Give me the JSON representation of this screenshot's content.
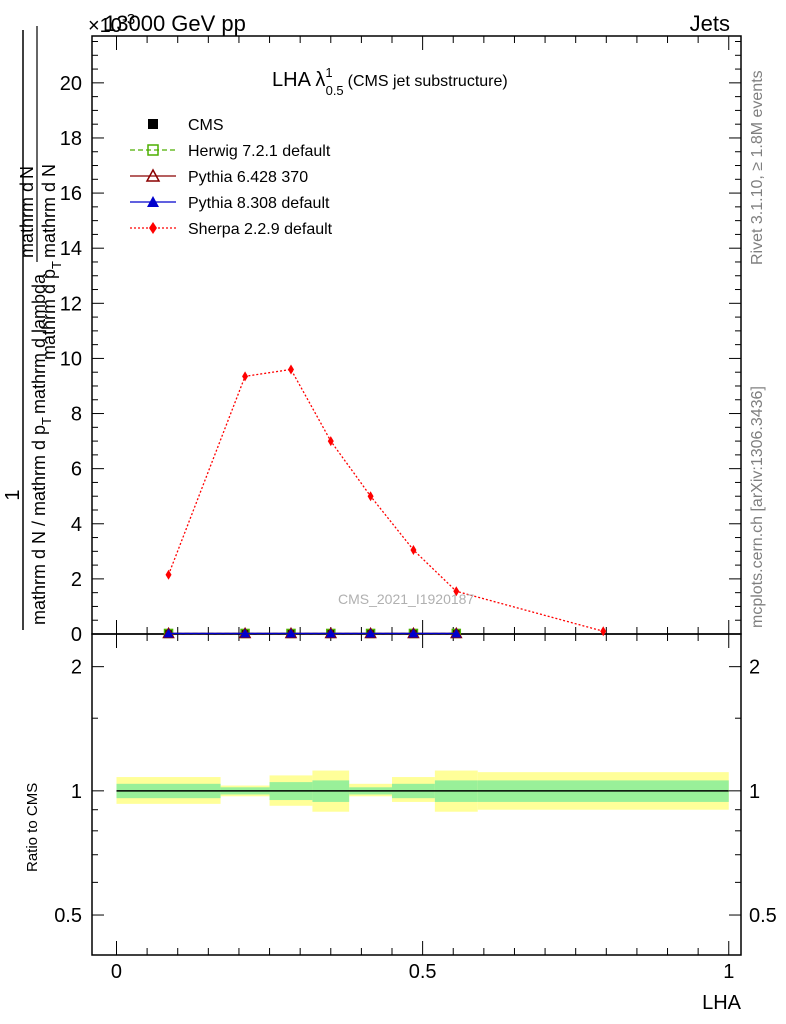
{
  "header": {
    "left": "13000 GeV pp",
    "right": "Jets",
    "exponent": "×10",
    "exponent_power": "-3"
  },
  "side_labels": {
    "rivet": "Rivet 3.1.10, ≥ 1.8M events",
    "mcplots": "mcplots.cern.ch [arXiv:1306.3436]"
  },
  "plot_title": {
    "main": "LHA λ",
    "sup": "1",
    "sub": "0.5",
    "suffix": "(CMS jet substructure)"
  },
  "watermark": "CMS_2021_I1920187",
  "y_label": {
    "numerator": "1",
    "denominator": "mathrm d N / mathrm d p",
    "denominator_sub": "T",
    "denominator_rest": "mathrm d N",
    "full_parts": [
      "mathrm d",
      "N"
    ],
    "line1": "mathrm d",
    "line1b": "N",
    "line2": "mathrm d p",
    "line2_sub": "T",
    "line2_rest": "mathrm d lambda",
    "line_mid": "mathrm d p",
    "line_mid_sub": "T",
    "line_mid_rest": "mathrm d N"
  },
  "ratio_label": "Ratio to CMS",
  "x_label": "LHA",
  "legend": [
    {
      "name": "CMS",
      "color": "#000000",
      "marker": "square-filled",
      "line": "none"
    },
    {
      "name": "Herwig 7.2.1 default",
      "color": "#4daf00",
      "marker": "square-open",
      "line": "dashed"
    },
    {
      "name": "Pythia 6.428 370",
      "color": "#8b0000",
      "marker": "triangle-open",
      "line": "solid"
    },
    {
      "name": "Pythia 8.308 default",
      "color": "#0000cc",
      "marker": "triangle-filled",
      "line": "solid"
    },
    {
      "name": "Sherpa 2.2.9 default",
      "color": "#ff0000",
      "marker": "diamond-filled",
      "line": "dotted"
    }
  ],
  "chart_data": [
    {
      "type": "line",
      "xlim": [
        -0.04,
        1.02
      ],
      "ylim": [
        0,
        21.7
      ],
      "y_ticks": [
        0,
        2,
        4,
        6,
        8,
        10,
        12,
        14,
        16,
        18,
        20
      ],
      "y_tick_labels": [
        "0",
        "2",
        "4",
        "6",
        "8",
        "10",
        "12",
        "14",
        "16",
        "18",
        "20"
      ],
      "series": [
        {
          "name": "Sherpa 2.2.9 default",
          "x": [
            0.085,
            0.21,
            0.285,
            0.35,
            0.415,
            0.485,
            0.555,
            0.795
          ],
          "y": [
            2.15,
            9.35,
            9.6,
            7.0,
            5.0,
            3.05,
            1.55,
            0.1
          ]
        },
        {
          "name": "CMS",
          "x": [
            0.085,
            0.21,
            0.285,
            0.35,
            0.415,
            0.485,
            0.555
          ],
          "y": [
            0.02,
            0.02,
            0.02,
            0.02,
            0.02,
            0.02,
            0.02
          ]
        },
        {
          "name": "Herwig 7.2.1 default",
          "x": [
            0.085,
            0.21,
            0.285,
            0.35,
            0.415,
            0.485,
            0.555
          ],
          "y": [
            0.02,
            0.02,
            0.02,
            0.02,
            0.02,
            0.02,
            0.02
          ]
        },
        {
          "name": "Pythia 6.428 370",
          "x": [
            0.085,
            0.21,
            0.285,
            0.35,
            0.415,
            0.485,
            0.555
          ],
          "y": [
            0.02,
            0.02,
            0.02,
            0.02,
            0.02,
            0.02,
            0.02
          ]
        },
        {
          "name": "Pythia 8.308 default",
          "x": [
            0.085,
            0.21,
            0.285,
            0.35,
            0.415,
            0.485,
            0.555
          ],
          "y": [
            0.02,
            0.02,
            0.02,
            0.02,
            0.02,
            0.02,
            0.02
          ]
        }
      ]
    },
    {
      "type": "area",
      "scale": "log",
      "xlim": [
        -0.04,
        1.02
      ],
      "ylim": [
        0.4,
        2.4
      ],
      "y_ticks": [
        0.5,
        1,
        2
      ],
      "y_tick_labels": [
        "0.5",
        "1",
        "2"
      ],
      "x_ticks": [
        0,
        0.5,
        1
      ],
      "x_tick_labels": [
        "0",
        "0.5",
        "1"
      ],
      "bins": [
        {
          "x0": 0.0,
          "x1": 0.17,
          "yellow": [
            0.93,
            1.08
          ],
          "green": [
            0.96,
            1.04
          ]
        },
        {
          "x0": 0.17,
          "x1": 0.25,
          "yellow": [
            0.97,
            1.03
          ],
          "green": [
            0.98,
            1.02
          ]
        },
        {
          "x0": 0.25,
          "x1": 0.32,
          "yellow": [
            0.92,
            1.09
          ],
          "green": [
            0.95,
            1.05
          ]
        },
        {
          "x0": 0.32,
          "x1": 0.38,
          "yellow": [
            0.89,
            1.12
          ],
          "green": [
            0.94,
            1.06
          ]
        },
        {
          "x0": 0.38,
          "x1": 0.45,
          "yellow": [
            0.97,
            1.04
          ],
          "green": [
            0.98,
            1.02
          ]
        },
        {
          "x0": 0.45,
          "x1": 0.52,
          "yellow": [
            0.94,
            1.08
          ],
          "green": [
            0.96,
            1.04
          ]
        },
        {
          "x0": 0.52,
          "x1": 0.59,
          "yellow": [
            0.89,
            1.12
          ],
          "green": [
            0.94,
            1.06
          ]
        },
        {
          "x0": 0.59,
          "x1": 1.0,
          "yellow": [
            0.9,
            1.11
          ],
          "green": [
            0.94,
            1.06
          ]
        }
      ],
      "reference": 1
    }
  ]
}
